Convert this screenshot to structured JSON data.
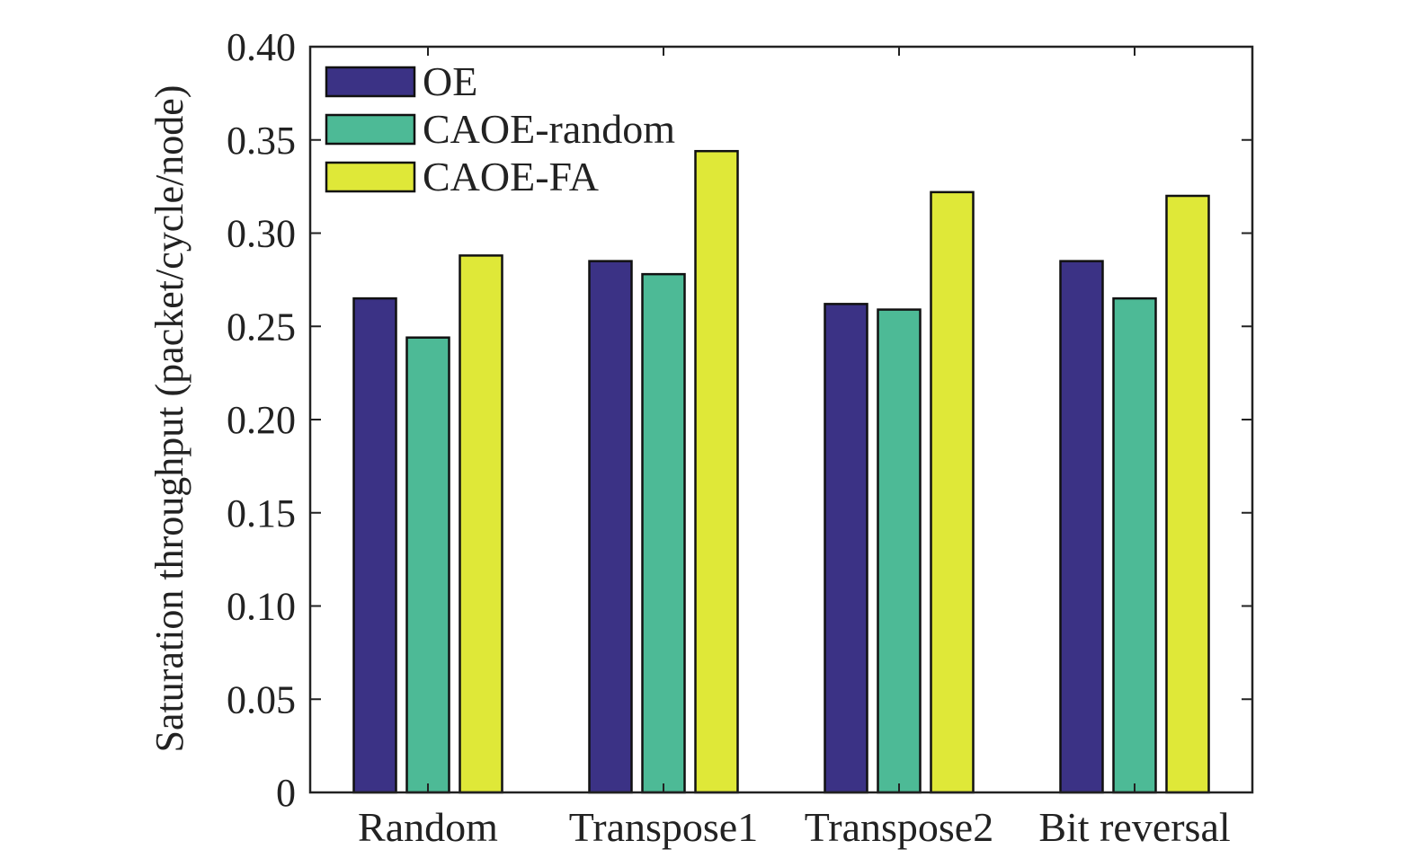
{
  "chart_data": {
    "type": "bar",
    "title": "",
    "xlabel": "",
    "ylabel": "Saturation throughput (packet/cycle/node)",
    "categories": [
      "Random",
      "Transpose1",
      "Transpose2",
      "Bit reversal"
    ],
    "series": [
      {
        "name": "OE",
        "color": "#3b3285",
        "values": [
          0.265,
          0.285,
          0.262,
          0.285
        ]
      },
      {
        "name": "CAOE-random",
        "color": "#4dba96",
        "values": [
          0.244,
          0.278,
          0.259,
          0.265
        ]
      },
      {
        "name": "CAOE-FA",
        "color": "#dfe838",
        "values": [
          0.288,
          0.344,
          0.322,
          0.32
        ]
      }
    ],
    "ylim": [
      0,
      0.4
    ],
    "yticks": [
      0,
      0.05,
      0.1,
      0.15,
      0.2,
      0.25,
      0.3,
      0.35,
      0.4
    ],
    "ytick_labels": [
      "0",
      "0.05",
      "0.10",
      "0.15",
      "0.20",
      "0.25",
      "0.30",
      "0.35",
      "0.40"
    ],
    "grid": false,
    "legend_position": "top-left"
  }
}
